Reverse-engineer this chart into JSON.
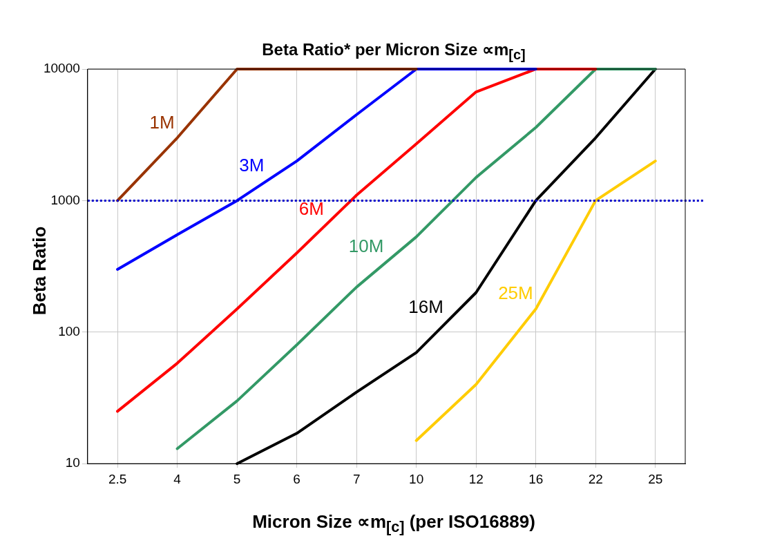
{
  "chart_data": {
    "type": "line",
    "title": "Beta Ratio* per Micron Size ∝m$_{[c]}$",
    "xlabel": "Micron Size ∝m$_{[c]}$ (per ISO16889)",
    "ylabel": "Beta Ratio",
    "categories": [
      "2.5",
      "4",
      "5",
      "6",
      "7",
      "10",
      "12",
      "16",
      "22",
      "25"
    ],
    "series": [
      {
        "name": "1M",
        "color": "#993300",
        "values": [
          1000,
          3000,
          10000,
          10000,
          10000,
          10000,
          null,
          null,
          null,
          null
        ]
      },
      {
        "name": "3M",
        "color": "#0000ff",
        "values": [
          300,
          550,
          1000,
          2000,
          4500,
          10000,
          10000,
          10000,
          null,
          null
        ]
      },
      {
        "name": "6M",
        "color": "#ff0000",
        "values": [
          25,
          58,
          150,
          400,
          1100,
          2700,
          6700,
          10000,
          10000,
          null
        ]
      },
      {
        "name": "10M",
        "color": "#339966",
        "values": [
          null,
          13,
          30,
          80,
          220,
          530,
          1500,
          3600,
          10000,
          10000
        ]
      },
      {
        "name": "16M",
        "color": "#000000",
        "values": [
          null,
          null,
          10,
          17,
          35,
          70,
          200,
          1000,
          3000,
          10000
        ]
      },
      {
        "name": "25M",
        "color": "#ffcc00",
        "values": [
          null,
          null,
          null,
          null,
          null,
          15,
          40,
          150,
          1000,
          2000
        ]
      }
    ],
    "log": "y",
    "ylim": [
      10,
      10000
    ],
    "yticks": [
      10,
      100,
      1000,
      10000
    ],
    "grid": true,
    "marker": "none",
    "line_style": "solid",
    "ref_lines": [
      {
        "axis": "y",
        "value": 1000,
        "color": "#0000cc",
        "line_style": "dotted"
      }
    ]
  }
}
